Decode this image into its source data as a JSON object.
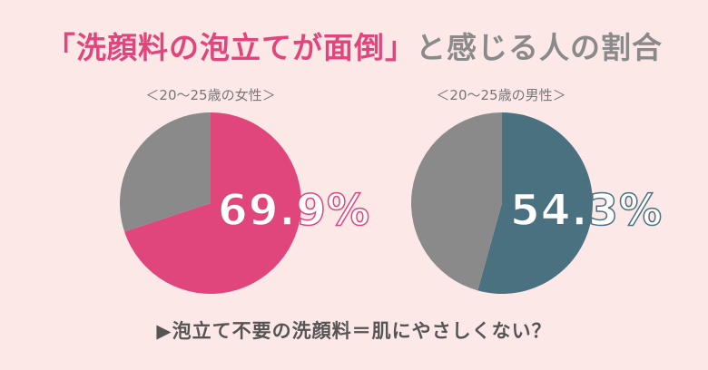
{
  "title": {
    "highlight": "「洗顔料の泡立てが面倒」",
    "rest": "と感じる人の割合"
  },
  "footer": "▶泡立て不要の洗顔料＝肌にやさしくない？",
  "chart_data": [
    {
      "type": "pie",
      "title": "＜20～25歳の女性＞",
      "slices": [
        {
          "label": "",
          "value": 69.9,
          "color": "#e0457b"
        },
        {
          "label": "",
          "value": 30.1,
          "color": "#8a8a8a"
        }
      ],
      "data_label": "69.9%"
    },
    {
      "type": "pie",
      "title": "＜20～25歳の男性＞",
      "slices": [
        {
          "label": "",
          "value": 54.3,
          "color": "#4a7180"
        },
        {
          "label": "",
          "value": 45.7,
          "color": "#8a8a8a"
        }
      ],
      "data_label": "54.3%"
    }
  ]
}
